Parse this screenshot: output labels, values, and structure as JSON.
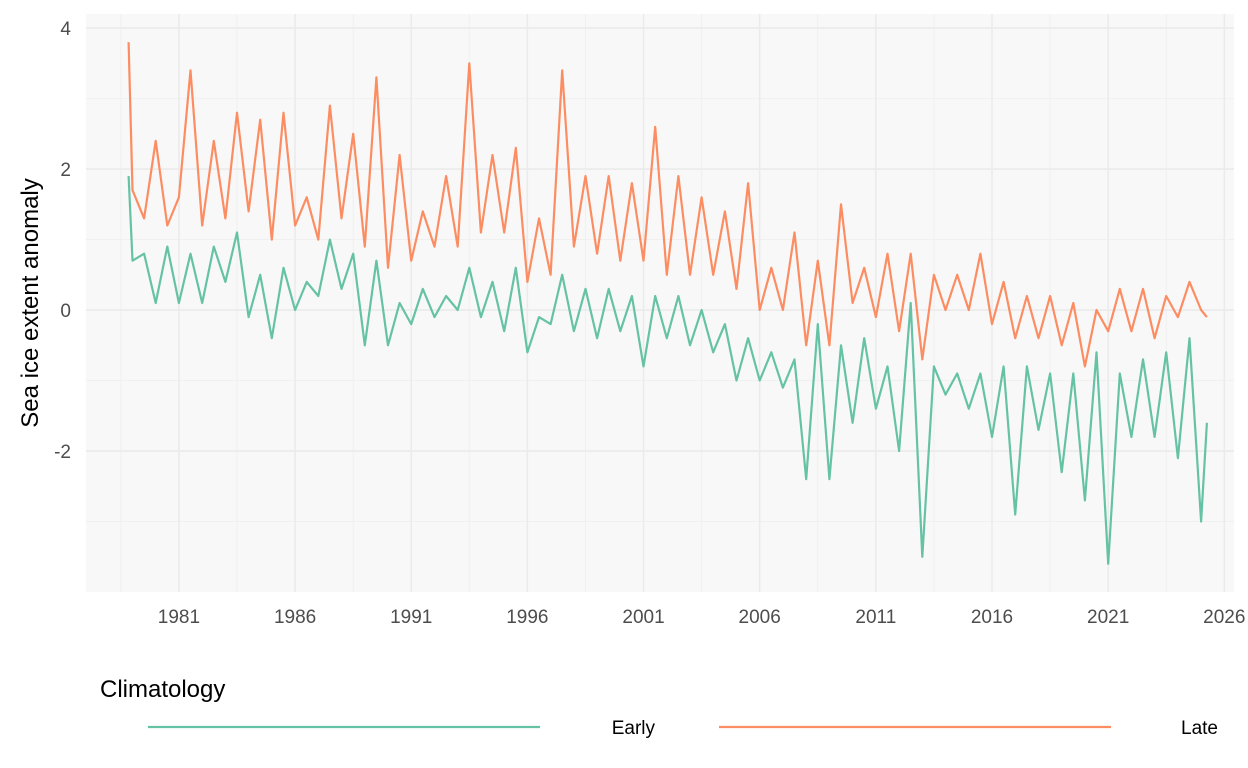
{
  "chart_data": {
    "type": "line",
    "title": "",
    "xlabel": "",
    "ylabel": "Sea ice extent anomaly",
    "x_range": [
      "1977-01",
      "2026-06"
    ],
    "ylim": [
      -4,
      4.2
    ],
    "x_ticks": [
      "1981",
      "1986",
      "1991",
      "1996",
      "2001",
      "2006",
      "2011",
      "2016",
      "2021",
      "2026"
    ],
    "y_ticks": [
      "-2",
      "0",
      "2",
      "4"
    ],
    "grid": true,
    "legend": {
      "title": "Climatology",
      "position": "bottom"
    },
    "series": [
      {
        "name": "Early",
        "color": "#66c2a5",
        "points": [
          [
            "1978-11",
            1.9
          ],
          [
            "1979-01",
            0.7
          ],
          [
            "1979-07",
            0.8
          ],
          [
            "1980-01",
            0.1
          ],
          [
            "1980-07",
            0.9
          ],
          [
            "1981-01",
            0.1
          ],
          [
            "1981-07",
            0.8
          ],
          [
            "1982-01",
            0.1
          ],
          [
            "1982-07",
            0.9
          ],
          [
            "1983-01",
            0.4
          ],
          [
            "1983-07",
            1.1
          ],
          [
            "1984-01",
            -0.1
          ],
          [
            "1984-07",
            0.5
          ],
          [
            "1985-01",
            -0.4
          ],
          [
            "1985-07",
            0.6
          ],
          [
            "1986-01",
            0.0
          ],
          [
            "1986-07",
            0.4
          ],
          [
            "1987-01",
            0.2
          ],
          [
            "1987-07",
            1.0
          ],
          [
            "1988-01",
            0.3
          ],
          [
            "1988-07",
            0.8
          ],
          [
            "1989-01",
            -0.5
          ],
          [
            "1989-07",
            0.7
          ],
          [
            "1990-01",
            -0.5
          ],
          [
            "1990-07",
            0.1
          ],
          [
            "1991-01",
            -0.2
          ],
          [
            "1991-07",
            0.3
          ],
          [
            "1992-01",
            -0.1
          ],
          [
            "1992-07",
            0.2
          ],
          [
            "1993-01",
            0.0
          ],
          [
            "1993-07",
            0.6
          ],
          [
            "1994-01",
            -0.1
          ],
          [
            "1994-07",
            0.4
          ],
          [
            "1995-01",
            -0.3
          ],
          [
            "1995-07",
            0.6
          ],
          [
            "1996-01",
            -0.6
          ],
          [
            "1996-07",
            -0.1
          ],
          [
            "1997-01",
            -0.2
          ],
          [
            "1997-07",
            0.5
          ],
          [
            "1998-01",
            -0.3
          ],
          [
            "1998-07",
            0.3
          ],
          [
            "1999-01",
            -0.4
          ],
          [
            "1999-07",
            0.3
          ],
          [
            "2000-01",
            -0.3
          ],
          [
            "2000-07",
            0.2
          ],
          [
            "2001-01",
            -0.8
          ],
          [
            "2001-07",
            0.2
          ],
          [
            "2002-01",
            -0.4
          ],
          [
            "2002-07",
            0.2
          ],
          [
            "2003-01",
            -0.5
          ],
          [
            "2003-07",
            0.0
          ],
          [
            "2004-01",
            -0.6
          ],
          [
            "2004-07",
            -0.2
          ],
          [
            "2005-01",
            -1.0
          ],
          [
            "2005-07",
            -0.4
          ],
          [
            "2006-01",
            -1.0
          ],
          [
            "2006-07",
            -0.6
          ],
          [
            "2007-01",
            -1.1
          ],
          [
            "2007-07",
            -0.7
          ],
          [
            "2008-01",
            -2.4
          ],
          [
            "2008-07",
            -0.2
          ],
          [
            "2009-01",
            -2.4
          ],
          [
            "2009-07",
            -0.5
          ],
          [
            "2010-01",
            -1.6
          ],
          [
            "2010-07",
            -0.4
          ],
          [
            "2011-01",
            -1.4
          ],
          [
            "2011-07",
            -0.8
          ],
          [
            "2012-01",
            -2.0
          ],
          [
            "2012-07",
            0.1
          ],
          [
            "2013-01",
            -3.5
          ],
          [
            "2013-07",
            -0.8
          ],
          [
            "2014-01",
            -1.2
          ],
          [
            "2014-07",
            -0.9
          ],
          [
            "2015-01",
            -1.4
          ],
          [
            "2015-07",
            -0.9
          ],
          [
            "2016-01",
            -1.8
          ],
          [
            "2016-07",
            -0.8
          ],
          [
            "2017-01",
            -2.9
          ],
          [
            "2017-07",
            -0.8
          ],
          [
            "2018-01",
            -1.7
          ],
          [
            "2018-07",
            -0.9
          ],
          [
            "2019-01",
            -2.3
          ],
          [
            "2019-07",
            -0.9
          ],
          [
            "2020-01",
            -2.7
          ],
          [
            "2020-07",
            -0.6
          ],
          [
            "2021-01",
            -3.6
          ],
          [
            "2021-07",
            -0.9
          ],
          [
            "2022-01",
            -1.8
          ],
          [
            "2022-07",
            -0.7
          ],
          [
            "2023-01",
            -1.8
          ],
          [
            "2023-07",
            -0.6
          ],
          [
            "2024-01",
            -2.1
          ],
          [
            "2024-07",
            -0.4
          ],
          [
            "2025-01",
            -3.0
          ],
          [
            "2025-04",
            -1.6
          ]
        ]
      },
      {
        "name": "Late",
        "color": "#fc8d62",
        "points": [
          [
            "1978-11",
            3.8
          ],
          [
            "1979-01",
            1.7
          ],
          [
            "1979-07",
            1.3
          ],
          [
            "1980-01",
            2.4
          ],
          [
            "1980-07",
            1.2
          ],
          [
            "1981-01",
            1.6
          ],
          [
            "1981-07",
            3.4
          ],
          [
            "1982-01",
            1.2
          ],
          [
            "1982-07",
            2.4
          ],
          [
            "1983-01",
            1.3
          ],
          [
            "1983-07",
            2.8
          ],
          [
            "1984-01",
            1.4
          ],
          [
            "1984-07",
            2.7
          ],
          [
            "1985-01",
            1.0
          ],
          [
            "1985-07",
            2.8
          ],
          [
            "1986-01",
            1.2
          ],
          [
            "1986-07",
            1.6
          ],
          [
            "1987-01",
            1.0
          ],
          [
            "1987-07",
            2.9
          ],
          [
            "1988-01",
            1.3
          ],
          [
            "1988-07",
            2.5
          ],
          [
            "1989-01",
            0.9
          ],
          [
            "1989-07",
            3.3
          ],
          [
            "1990-01",
            0.6
          ],
          [
            "1990-07",
            2.2
          ],
          [
            "1991-01",
            0.7
          ],
          [
            "1991-07",
            1.4
          ],
          [
            "1992-01",
            0.9
          ],
          [
            "1992-07",
            1.9
          ],
          [
            "1993-01",
            0.9
          ],
          [
            "1993-07",
            3.5
          ],
          [
            "1994-01",
            1.1
          ],
          [
            "1994-07",
            2.2
          ],
          [
            "1995-01",
            1.1
          ],
          [
            "1995-07",
            2.3
          ],
          [
            "1996-01",
            0.4
          ],
          [
            "1996-07",
            1.3
          ],
          [
            "1997-01",
            0.5
          ],
          [
            "1997-07",
            3.4
          ],
          [
            "1998-01",
            0.9
          ],
          [
            "1998-07",
            1.9
          ],
          [
            "1999-01",
            0.8
          ],
          [
            "1999-07",
            1.9
          ],
          [
            "2000-01",
            0.7
          ],
          [
            "2000-07",
            1.8
          ],
          [
            "2001-01",
            0.7
          ],
          [
            "2001-07",
            2.6
          ],
          [
            "2002-01",
            0.5
          ],
          [
            "2002-07",
            1.9
          ],
          [
            "2003-01",
            0.5
          ],
          [
            "2003-07",
            1.6
          ],
          [
            "2004-01",
            0.5
          ],
          [
            "2004-07",
            1.4
          ],
          [
            "2005-01",
            0.3
          ],
          [
            "2005-07",
            1.8
          ],
          [
            "2006-01",
            0.0
          ],
          [
            "2006-07",
            0.6
          ],
          [
            "2007-01",
            0.0
          ],
          [
            "2007-07",
            1.1
          ],
          [
            "2008-01",
            -0.5
          ],
          [
            "2008-07",
            0.7
          ],
          [
            "2009-01",
            -0.5
          ],
          [
            "2009-07",
            1.5
          ],
          [
            "2010-01",
            0.1
          ],
          [
            "2010-07",
            0.6
          ],
          [
            "2011-01",
            -0.1
          ],
          [
            "2011-07",
            0.8
          ],
          [
            "2012-01",
            -0.3
          ],
          [
            "2012-07",
            0.8
          ],
          [
            "2013-01",
            -0.7
          ],
          [
            "2013-07",
            0.5
          ],
          [
            "2014-01",
            0.0
          ],
          [
            "2014-07",
            0.5
          ],
          [
            "2015-01",
            0.0
          ],
          [
            "2015-07",
            0.8
          ],
          [
            "2016-01",
            -0.2
          ],
          [
            "2016-07",
            0.4
          ],
          [
            "2017-01",
            -0.4
          ],
          [
            "2017-07",
            0.2
          ],
          [
            "2018-01",
            -0.4
          ],
          [
            "2018-07",
            0.2
          ],
          [
            "2019-01",
            -0.5
          ],
          [
            "2019-07",
            0.1
          ],
          [
            "2020-01",
            -0.8
          ],
          [
            "2020-07",
            0.0
          ],
          [
            "2021-01",
            -0.3
          ],
          [
            "2021-07",
            0.3
          ],
          [
            "2022-01",
            -0.3
          ],
          [
            "2022-07",
            0.3
          ],
          [
            "2023-01",
            -0.4
          ],
          [
            "2023-07",
            0.2
          ],
          [
            "2024-01",
            -0.1
          ],
          [
            "2024-07",
            0.4
          ],
          [
            "2025-01",
            0.0
          ],
          [
            "2025-04",
            -0.1
          ]
        ]
      }
    ]
  }
}
